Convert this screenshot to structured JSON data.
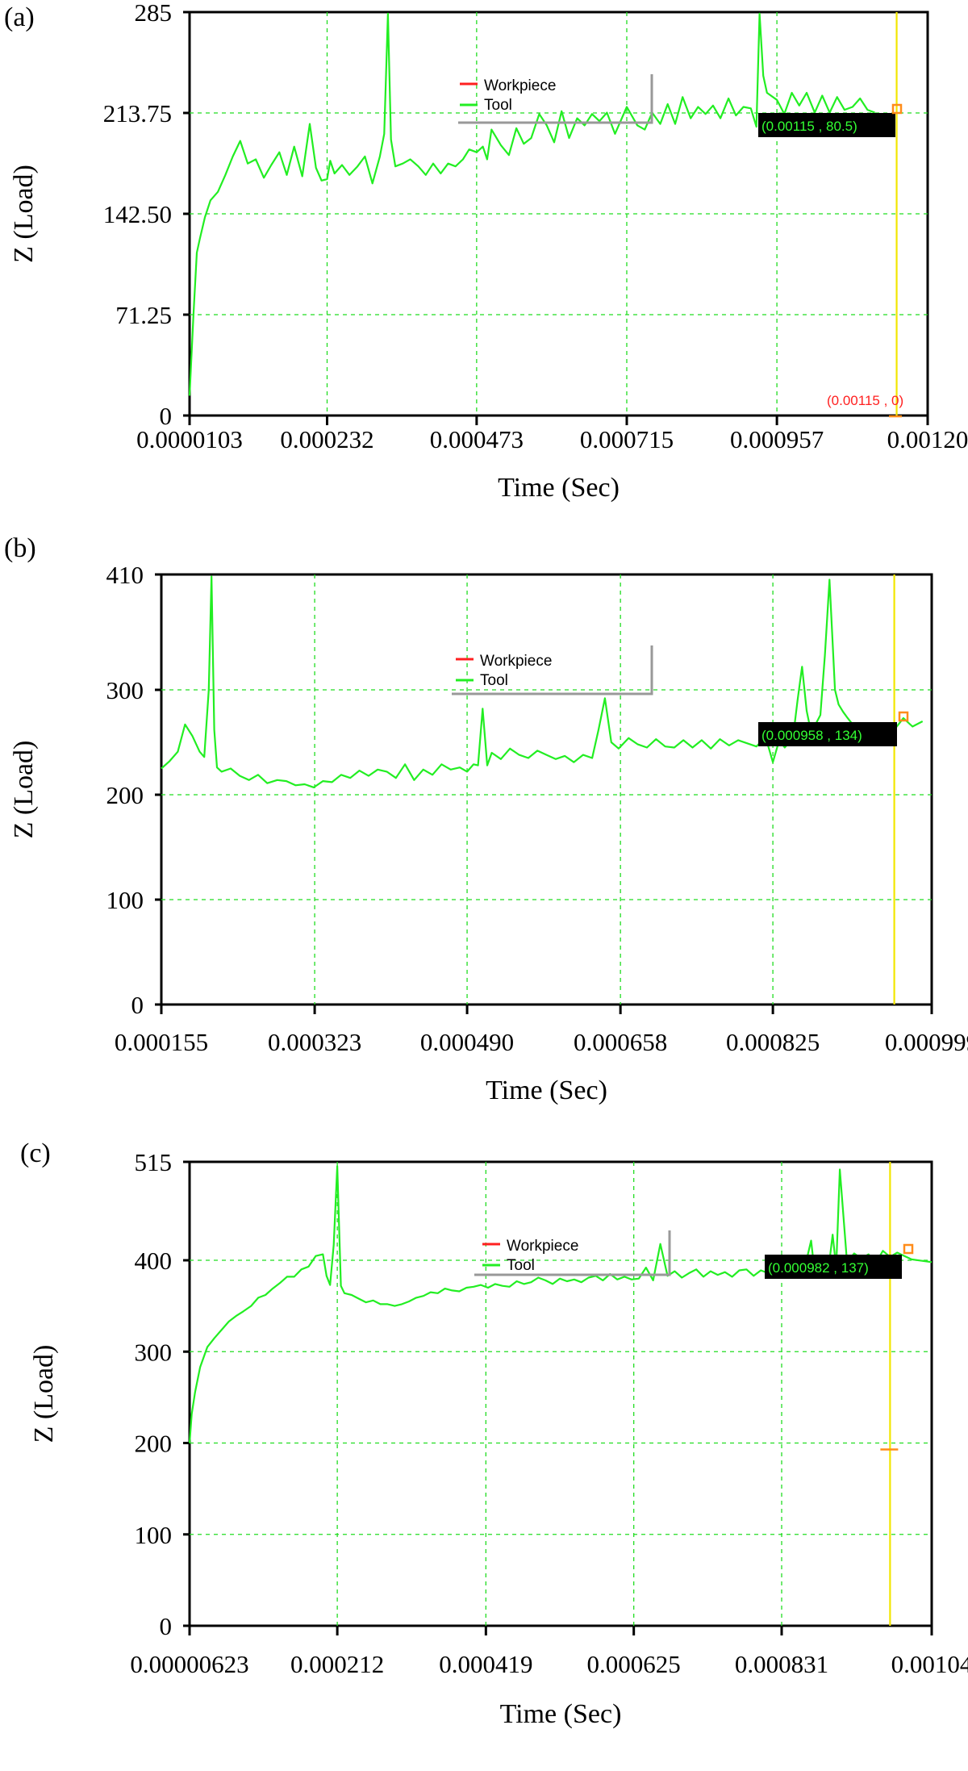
{
  "colors": {
    "series": "#22ee22",
    "legend_workpiece": "#ff2020",
    "grid": "#22dd22",
    "cursor": "#f2e600",
    "marker": "#ff8c1a",
    "readout_bg": "#000000",
    "readout_text": "#33ff33",
    "zero_readout_text": "#ff2020"
  },
  "chart_data": [
    {
      "type": "line",
      "panel_label": "(a)",
      "xlabel": "Time (Sec)",
      "ylabel": "Z (Load)",
      "xlim": [
        1.03e-05,
        0.0012
      ],
      "ylim": [
        0,
        285
      ],
      "x_tick_values": [
        1.03e-05,
        0.000232,
        0.000473,
        0.000715,
        0.000957,
        0.0012
      ],
      "x_tick_labels": [
        "0.0000103",
        "0.000232",
        "0.000473",
        "0.000715",
        "0.000957",
        "0.00120"
      ],
      "y_tick_values": [
        0,
        71.25,
        142.5,
        213.75,
        285
      ],
      "y_tick_labels": [
        "0",
        "71.25",
        "142.50",
        "213.75",
        "285"
      ],
      "legend": [
        "Workpiece",
        "Tool"
      ],
      "cursor_x": 0.00115,
      "readout": "(0.00115 , 80.5)",
      "zero_readout": "(0.00115 , 0)",
      "series": [
        {
          "name": "Tool",
          "x": [
            1.03e-05,
            1.67e-05,
            2.2e-05,
            2.7e-05,
            3.5e-05,
            4.4e-05,
            5.6e-05,
            6.8e-05,
            8e-05,
            9.2e-05,
            0.000104,
            0.000117,
            0.00013,
            0.000142,
            0.000155,
            0.000167,
            0.000179,
            0.000192,
            0.000204,
            0.000214,
            0.000223,
            0.000232,
            0.000237,
            0.000244,
            0.000256,
            0.000268,
            0.000281,
            0.000293,
            0.000305,
            0.000317,
            0.000324,
            0.00033,
            0.000335,
            0.000342,
            0.000354,
            0.000366,
            0.000379,
            0.000391,
            0.000403,
            0.000415,
            0.000427,
            0.000439,
            0.000451,
            0.000461,
            0.000473,
            0.000483,
            0.00049,
            0.000497,
            0.000512,
            0.000525,
            0.000537,
            0.000549,
            0.000561,
            0.000574,
            0.000586,
            0.000598,
            0.00061,
            0.000622,
            0.000635,
            0.000647,
            0.000659,
            0.000671,
            0.000683,
            0.000696,
            0.000715,
            0.000732,
            0.000744,
            0.000756,
            0.000769,
            0.000781,
            0.000793,
            0.000805,
            0.000818,
            0.00083,
            0.000842,
            0.000854,
            0.000866,
            0.000879,
            0.000891,
            0.000903,
            0.000915,
            0.000924,
            0.000929,
            0.000935,
            0.000941,
            0.000957,
            0.000969,
            0.000981,
            0.000993,
            0.001005,
            0.001018,
            0.00103,
            0.001042,
            0.001054,
            0.001066,
            0.001079,
            0.001091,
            0.001103,
            0.001115
          ],
          "values": [
            14,
            72,
            115,
            125,
            140,
            152,
            158,
            170,
            183,
            194,
            178,
            181,
            168,
            177,
            186,
            170,
            190,
            169,
            206,
            175,
            166,
            167,
            180,
            171,
            177,
            170,
            176,
            183,
            164,
            183,
            199,
            284,
            195,
            176,
            178,
            181,
            176,
            170,
            178,
            171,
            178,
            176,
            181,
            188,
            186,
            190,
            181,
            202,
            191,
            184,
            203,
            192,
            196,
            213,
            205,
            193,
            215,
            196,
            210,
            205,
            213,
            208,
            214,
            199,
            218,
            205,
            202,
            214,
            206,
            220,
            206,
            225,
            210,
            218,
            213,
            219,
            210,
            224,
            212,
            218,
            217,
            204,
            284,
            240,
            228,
            223,
            213,
            228,
            219,
            228,
            214,
            226,
            214,
            225,
            216,
            218,
            224,
            216,
            214
          ]
        }
      ]
    },
    {
      "type": "line",
      "panel_label": "(b)",
      "xlabel": "Time (Sec)",
      "ylabel": "Z (Load)",
      "xlim": [
        0.000155,
        0.000999
      ],
      "ylim": [
        0,
        410
      ],
      "x_tick_values": [
        0.000155,
        0.000323,
        0.00049,
        0.000658,
        0.000825,
        0.000999
      ],
      "x_tick_labels": [
        "0.000155",
        "0.000323",
        "0.000490",
        "0.000658",
        "0.000825",
        "0.000999"
      ],
      "y_tick_values": [
        0,
        100,
        200,
        300,
        410
      ],
      "y_tick_labels": [
        "0",
        "100",
        "200",
        "300",
        "410"
      ],
      "legend": [
        "Workpiece",
        "Tool"
      ],
      "cursor_x": 0.000958,
      "readout": "(0.000958 , 134)",
      "series": [
        {
          "name": "Tool",
          "x": [
            0.000155,
            0.000164,
            0.000173,
            0.000181,
            0.000189,
            0.000197,
            0.000202,
            0.000207,
            0.00021,
            0.000213,
            0.000216,
            0.000221,
            0.000231,
            0.000241,
            0.000251,
            0.000261,
            0.000271,
            0.000282,
            0.000292,
            0.000302,
            0.000312,
            0.000322,
            0.000332,
            0.000342,
            0.000352,
            0.000362,
            0.000372,
            0.000382,
            0.000392,
            0.000402,
            0.000412,
            0.000422,
            0.000432,
            0.000442,
            0.000452,
            0.000462,
            0.000472,
            0.000482,
            0.00049,
            0.000497,
            0.000502,
            0.000507,
            0.000512,
            0.000517,
            0.000527,
            0.000537,
            0.000547,
            0.000557,
            0.000567,
            0.000577,
            0.000587,
            0.000597,
            0.000607,
            0.000617,
            0.000627,
            0.000634,
            0.000641,
            0.000648,
            0.000656,
            0.000667,
            0.000677,
            0.000687,
            0.000697,
            0.000707,
            0.000717,
            0.000727,
            0.000737,
            0.000747,
            0.000757,
            0.000767,
            0.000777,
            0.000787,
            0.000797,
            0.000807,
            0.000817,
            0.000825,
            0.000832,
            0.000838,
            0.000847,
            0.000852,
            0.000857,
            0.000862,
            0.000867,
            0.000877,
            0.000882,
            0.000887,
            0.000893,
            0.000897,
            0.000902,
            0.000907,
            0.000917,
            0.000927,
            0.000937,
            0.000947,
            0.000958,
            0.000968,
            0.000978,
            0.000989
          ],
          "values": [
            225,
            232,
            241,
            267,
            256,
            241,
            236,
            300,
            408,
            262,
            226,
            222,
            225,
            218,
            214,
            219,
            211,
            214,
            213,
            209,
            210,
            207,
            213,
            212,
            219,
            216,
            223,
            218,
            224,
            222,
            216,
            229,
            214,
            224,
            219,
            229,
            224,
            226,
            222,
            229,
            228,
            282,
            228,
            240,
            234,
            244,
            238,
            235,
            242,
            238,
            234,
            237,
            231,
            238,
            235,
            262,
            292,
            250,
            244,
            254,
            248,
            245,
            253,
            246,
            245,
            252,
            245,
            252,
            244,
            253,
            247,
            252,
            249,
            246,
            255,
            231,
            252,
            245,
            254,
            290,
            322,
            280,
            259,
            276,
            333,
            405,
            300,
            286,
            279,
            273,
            262,
            258,
            255,
            262,
            262,
            273,
            265,
            270
          ]
        }
      ]
    },
    {
      "type": "line",
      "panel_label": "(c)",
      "xlabel": "Time (Sec)",
      "ylabel": "Z (Load)",
      "xlim": [
        6.23e-06,
        0.00104
      ],
      "ylim": [
        0,
        515
      ],
      "x_tick_values": [
        6.23e-06,
        0.000212,
        0.000419,
        0.000625,
        0.000831,
        0.00104
      ],
      "x_tick_labels": [
        "0.00000623",
        "0.000212",
        "0.000419",
        "0.000625",
        "0.000831",
        "0.00104"
      ],
      "y_tick_values": [
        0,
        100,
        200,
        300,
        400,
        515
      ],
      "y_tick_labels": [
        "0",
        "100",
        "200",
        "300",
        "400",
        "515"
      ],
      "legend": [
        "Workpiece",
        "Tool"
      ],
      "cursor_x": 0.000982,
      "readout": "(0.000982 , 137)",
      "series": [
        {
          "name": "Tool",
          "x": [
            6.23e-06,
            9.3e-06,
            1.4e-05,
            2.1e-05,
            3.1e-05,
            4.1e-05,
            5.1e-05,
            6.1e-05,
            7.1e-05,
            8.1e-05,
            9.2e-05,
            0.000102,
            0.000112,
            0.000122,
            0.000132,
            0.000142,
            0.000152,
            0.000162,
            0.000172,
            0.000182,
            0.000192,
            0.000197,
            0.000202,
            0.000207,
            0.000212,
            0.000217,
            0.000222,
            0.000232,
            0.000242,
            0.000252,
            0.000262,
            0.000272,
            0.000282,
            0.000292,
            0.000302,
            0.000312,
            0.000322,
            0.000332,
            0.000342,
            0.000352,
            0.000362,
            0.000372,
            0.000382,
            0.000392,
            0.000402,
            0.000412,
            0.000422,
            0.000432,
            0.000442,
            0.000452,
            0.000462,
            0.000472,
            0.000482,
            0.000492,
            0.000502,
            0.000512,
            0.000522,
            0.000532,
            0.000542,
            0.000552,
            0.000562,
            0.000572,
            0.000582,
            0.000592,
            0.000602,
            0.000612,
            0.000622,
            0.000632,
            0.000642,
            0.000652,
            0.000662,
            0.000672,
            0.000682,
            0.000692,
            0.000702,
            0.000712,
            0.000722,
            0.000732,
            0.000742,
            0.000752,
            0.000762,
            0.000772,
            0.000782,
            0.000792,
            0.000802,
            0.000812,
            0.000822,
            0.000831,
            0.000842,
            0.000852,
            0.000862,
            0.000872,
            0.000877,
            0.000882,
            0.000887,
            0.000892,
            0.000897,
            0.000902,
            0.000907,
            0.000912,
            0.000922,
            0.000932,
            0.000942,
            0.000952,
            0.000962,
            0.000972,
            0.000982,
            0.000992,
            0.001002,
            0.001012,
            0.00104
          ],
          "values": [
            200,
            232,
            256,
            283,
            305,
            315,
            324,
            333,
            339,
            344,
            350,
            359,
            362,
            369,
            375,
            382,
            382,
            390,
            393,
            405,
            407,
            383,
            373,
            418,
            510,
            372,
            364,
            362,
            358,
            354,
            356,
            352,
            352,
            350,
            352,
            355,
            359,
            361,
            365,
            364,
            369,
            367,
            366,
            370,
            371,
            373,
            370,
            374,
            372,
            371,
            377,
            374,
            376,
            381,
            378,
            374,
            380,
            377,
            379,
            376,
            381,
            383,
            378,
            385,
            379,
            382,
            379,
            380,
            392,
            378,
            419,
            383,
            388,
            381,
            386,
            390,
            382,
            388,
            384,
            387,
            382,
            389,
            390,
            383,
            389,
            386,
            390,
            388,
            385,
            388,
            388,
            423,
            387,
            392,
            385,
            390,
            395,
            430,
            392,
            506,
            398,
            408,
            402,
            407,
            397,
            411,
            404,
            409,
            405,
            401,
            398
          ]
        }
      ]
    }
  ]
}
